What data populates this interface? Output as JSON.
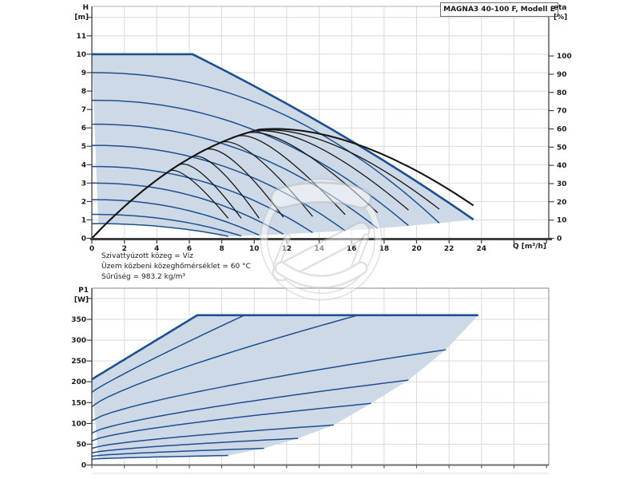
{
  "title_box": {
    "label": "MAGNA3 40-100 F, Modell E"
  },
  "notes": [
    "Szivattyúzott közeg = Víz",
    "Üzem közbeni közeghőmérséklet = 60 °C",
    "Sűrűség = 983.2 kg/m³"
  ],
  "colors": {
    "envelope_fill": "#cdd9e6",
    "curve_blue": "#1e4f8f",
    "curve_black": "#161616",
    "grid": "#d9d9d9",
    "axis_dark": "#3f3f3f",
    "frame_gray": "#9b9b9b",
    "text": "#1a1a1a",
    "watermark_gray": "#c3c3c3"
  },
  "chart_data": [
    {
      "type": "line",
      "title": "MAGNA3 40-100 F, Modell E",
      "x_axis": {
        "label": "Q [m³/h]",
        "ticks": [
          0,
          2,
          4,
          6,
          8,
          10,
          12,
          14,
          16,
          18,
          20,
          22,
          24
        ],
        "range": [
          0,
          28.14
        ],
        "grid_step": 2
      },
      "y_left": {
        "label": "H",
        "unit": "[m]",
        "ticks": [
          0,
          1,
          2,
          3,
          4,
          5,
          6,
          7,
          8,
          9,
          10,
          11
        ],
        "range": [
          0,
          12.6
        ]
      },
      "y_right": {
        "label": "eta",
        "unit": "[%]",
        "ticks": [
          0,
          10,
          20,
          30,
          40,
          50,
          60,
          70,
          80,
          90,
          100
        ],
        "range": [
          0,
          127.2
        ]
      },
      "max_curve": {
        "h0": 10,
        "flat_to_q": 6.2,
        "q_end": 23.5,
        "h_end": 1.02
      },
      "head_curves": [
        {
          "h0": 9.0,
          "q_end": 21.4,
          "h_end": 0.83
        },
        {
          "h0": 7.5,
          "q_end": 19.5,
          "h_end": 0.69
        },
        {
          "h0": 6.2,
          "q_end": 17.6,
          "h_end": 0.54
        },
        {
          "h0": 5.05,
          "q_end": 15.6,
          "h_end": 0.41
        },
        {
          "h0": 3.9,
          "q_end": 13.6,
          "h_end": 0.31
        },
        {
          "h0": 3.0,
          "q_end": 11.8,
          "h_end": 0.22
        },
        {
          "h0": 2.1,
          "q_end": 10.3,
          "h_end": 0.17
        },
        {
          "h0": 1.3,
          "q_end": 9.2,
          "h_end": 0.13
        },
        {
          "h0": 0.8,
          "q_end": 8.4,
          "h_end": 0.11
        }
      ],
      "eta_curves": [
        {
          "q_peak": 13.4,
          "eta_peak": 62.5,
          "q_end": 23.5,
          "eta_end": 18
        },
        {
          "q_peak": 12.2,
          "eta_peak": 62.0,
          "q_end": 21.4,
          "eta_end": 16
        },
        {
          "q_peak": 11.1,
          "eta_peak": 61.5,
          "q_end": 19.5,
          "eta_end": 15.5
        },
        {
          "q_peak": 10.0,
          "eta_peak": 60.5,
          "q_end": 17.6,
          "eta_end": 14
        },
        {
          "q_peak": 8.9,
          "eta_peak": 59.5,
          "q_end": 15.6,
          "eta_end": 13
        },
        {
          "q_peak": 7.8,
          "eta_peak": 58.0,
          "q_end": 13.6,
          "eta_end": 12
        },
        {
          "q_peak": 6.7,
          "eta_peak": 56.0,
          "q_end": 11.8,
          "eta_end": 11.5
        },
        {
          "q_peak": 5.9,
          "eta_peak": 52.0,
          "q_end": 10.3,
          "eta_end": 11
        },
        {
          "q_peak": 5.2,
          "eta_peak": 46.0,
          "q_end": 9.2,
          "eta_end": 11
        },
        {
          "q_peak": 4.8,
          "eta_peak": 39.0,
          "q_end": 8.4,
          "eta_end": 11
        }
      ],
      "envelope_bottom_exp": 2.2
    },
    {
      "type": "line",
      "y_left": {
        "label": "P1",
        "unit": "[W]",
        "ticks": [
          0,
          50,
          100,
          150,
          200,
          250,
          300,
          350
        ],
        "range": [
          0,
          424.8
        ]
      },
      "power_curves": [
        {
          "p0": 206,
          "q_end": 6.5,
          "p_end": 360,
          "k": 1.0,
          "flat_to_q": 23.8
        },
        {
          "p0": 175,
          "q_end": 9.4,
          "p_end": 360,
          "k": 0.92
        },
        {
          "p0": 140,
          "q_end": 16.4,
          "p_end": 360,
          "k": 0.8
        },
        {
          "p0": 106,
          "q_end": 21.8,
          "p_end": 277,
          "k": 0.74
        },
        {
          "p0": 77,
          "q_end": 19.5,
          "p_end": 204,
          "k": 0.74
        },
        {
          "p0": 58,
          "q_end": 17.2,
          "p_end": 148,
          "k": 0.72
        },
        {
          "p0": 40,
          "q_end": 14.9,
          "p_end": 96,
          "k": 0.7
        },
        {
          "p0": 29,
          "q_end": 12.7,
          "p_end": 64,
          "k": 0.7
        },
        {
          "p0": 21,
          "q_end": 10.6,
          "p_end": 40,
          "k": 0.7
        },
        {
          "p0": 14,
          "q_end": 8.4,
          "p_end": 23,
          "k": 0.7
        }
      ],
      "right_boundary": [
        [
          23.8,
          360
        ],
        [
          21.8,
          277
        ],
        [
          19.5,
          204
        ],
        [
          17.2,
          148
        ],
        [
          14.9,
          96
        ],
        [
          12.7,
          64
        ],
        [
          10.6,
          40
        ],
        [
          8.4,
          23
        ]
      ]
    }
  ]
}
